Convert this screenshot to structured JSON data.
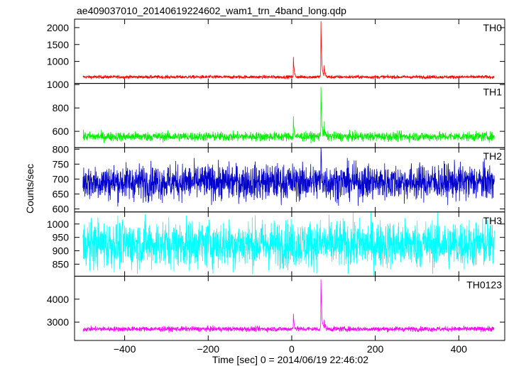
{
  "figure": {
    "title": "ae409037010_20140619224602_wam1_trn_4band_long.qdp",
    "ylabel": "Counts/sec",
    "xlabel": "Time [sec] 0 = 2014/06/19 22:46:02"
  },
  "chart_data": {
    "type": "line",
    "title": "ae409037010_20140619224602_wam1_trn_4band_long.qdp",
    "xlabel": "Time [sec] 0 = 2014/06/19 22:46:02",
    "ylabel": "Counts/sec",
    "xlim": [
      -520,
      510
    ],
    "x_range": [
      -500,
      485
    ],
    "xticks": [
      -400,
      -200,
      0,
      200,
      400
    ],
    "shared_x": true,
    "panels": [
      {
        "name": "TH0",
        "color": "#ff0000",
        "ylim": [
          350,
          2250
        ],
        "yticks": [
          1000,
          1500,
          2000
        ],
        "baseline": 540,
        "noise": 25,
        "events": [
          {
            "x": 4,
            "peak": 1100
          },
          {
            "x": 70,
            "peak": 2150
          },
          {
            "x": 78,
            "peak": 900
          }
        ]
      },
      {
        "name": "TH1",
        "color": "#00ee00",
        "ylim": [
          460,
          1010
        ],
        "yticks": [
          600,
          800,
          1000
        ],
        "baseline": 555,
        "noise": 20,
        "events": [
          {
            "x": 4,
            "peak": 700
          },
          {
            "x": 70,
            "peak": 1000
          },
          {
            "x": 78,
            "peak": 640
          }
        ]
      },
      {
        "name": "TH2",
        "color": "#0000cc",
        "ylim": [
          590,
          805
        ],
        "yticks": [
          600,
          650,
          700,
          750,
          800
        ],
        "baseline": 690,
        "noise": 30,
        "events": [
          {
            "x": 70,
            "peak": 800
          }
        ]
      },
      {
        "name": "TH3",
        "color": "#00ffff",
        "ylim": [
          805,
          1045
        ],
        "yticks": [
          850,
          900,
          950,
          1000
        ],
        "baseline": 925,
        "noise": 45,
        "events": []
      },
      {
        "name": "TH0123",
        "color": "#ff00ff",
        "ylim": [
          2200,
          5000
        ],
        "yticks": [
          3000,
          4000
        ],
        "baseline": 2700,
        "noise": 55,
        "events": [
          {
            "x": 4,
            "peak": 3350
          },
          {
            "x": 70,
            "peak": 4850
          },
          {
            "x": 78,
            "peak": 3100
          }
        ]
      }
    ]
  }
}
